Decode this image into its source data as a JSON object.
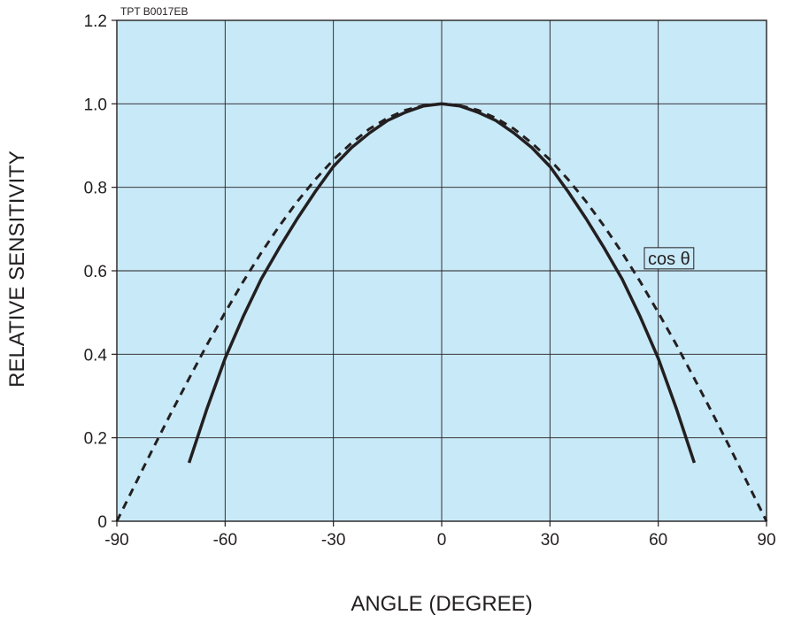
{
  "chart_data": {
    "type": "line",
    "figure_code": "TPT B0017EB",
    "xlabel": "ANGLE (DEGREE)",
    "ylabel": "RELATIVE SENSITIVITY",
    "xlim": [
      -90,
      90
    ],
    "ylim": [
      0,
      1.2
    ],
    "xticks": [
      "-90",
      "-60",
      "-30",
      "0",
      "30",
      "60",
      "90"
    ],
    "yticks": [
      "0",
      "0.2",
      "0.4",
      "0.6",
      "0.8",
      "1.0",
      "1.2"
    ],
    "grid": true,
    "colors": {
      "plot_background": "#c8e9f8",
      "grid": "#231f20",
      "line": "#231f20"
    },
    "series": [
      {
        "style": "solid",
        "x": [
          -70,
          -65,
          -60,
          -55,
          -50,
          -45,
          -40,
          -35,
          -30,
          -25,
          -20,
          -15,
          -10,
          -5,
          0,
          5,
          10,
          15,
          20,
          25,
          30,
          35,
          40,
          45,
          50,
          55,
          60,
          65,
          70
        ],
        "y": [
          0.14,
          0.27,
          0.39,
          0.49,
          0.58,
          0.655,
          0.725,
          0.79,
          0.85,
          0.895,
          0.93,
          0.96,
          0.98,
          0.995,
          1.0,
          0.995,
          0.98,
          0.96,
          0.93,
          0.895,
          0.85,
          0.79,
          0.725,
          0.655,
          0.58,
          0.49,
          0.39,
          0.27,
          0.14
        ]
      },
      {
        "name": "cos θ",
        "style": "dashed",
        "x": [
          -90,
          -85,
          -80,
          -75,
          -70,
          -65,
          -60,
          -55,
          -50,
          -45,
          -40,
          -35,
          -30,
          -25,
          -20,
          -15,
          -10,
          -5,
          0,
          5,
          10,
          15,
          20,
          25,
          30,
          35,
          40,
          45,
          50,
          55,
          60,
          65,
          70,
          75,
          80,
          85,
          90
        ],
        "y": [
          0.0,
          0.087,
          0.174,
          0.259,
          0.342,
          0.423,
          0.5,
          0.574,
          0.643,
          0.707,
          0.766,
          0.819,
          0.866,
          0.906,
          0.94,
          0.966,
          0.985,
          0.996,
          1.0,
          0.996,
          0.985,
          0.966,
          0.94,
          0.906,
          0.866,
          0.819,
          0.766,
          0.707,
          0.643,
          0.574,
          0.5,
          0.423,
          0.342,
          0.259,
          0.174,
          0.087,
          0.0
        ]
      }
    ],
    "annotations": [
      {
        "text": "cos θ",
        "x": 63,
        "y": 0.63,
        "boxed": true,
        "series": "cos θ"
      }
    ]
  }
}
